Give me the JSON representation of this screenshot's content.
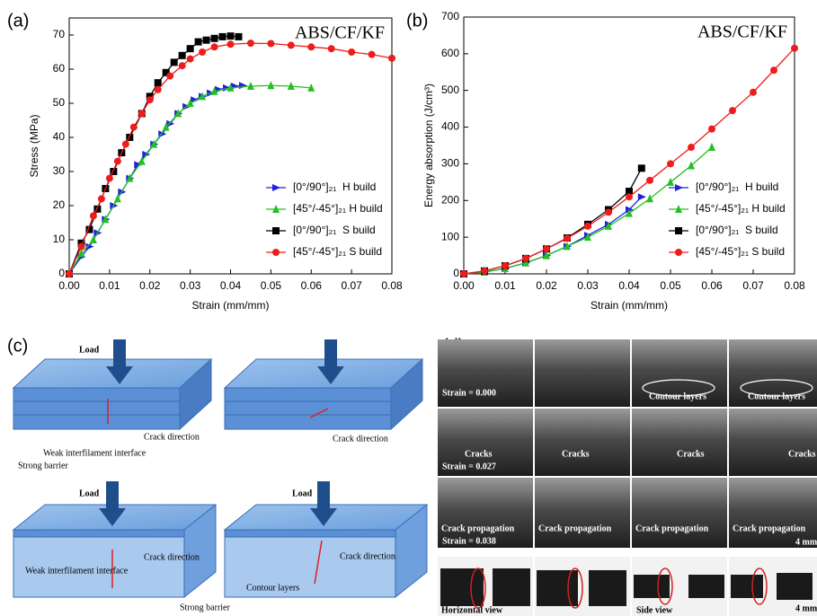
{
  "panel_labels": [
    "(a)",
    "(b)",
    "(c)",
    "(d)"
  ],
  "chart_data": [
    {
      "type": "line",
      "annotation": "ABS/CF/KF",
      "x_label": "Strain (mm/mm)",
      "y_label": "Stress (MPa)",
      "xlim": [
        0,
        0.08
      ],
      "xticks": [
        {
          "value": 0,
          "label": "0.00"
        },
        0.01,
        0.02,
        0.03,
        0.04,
        0.05,
        0.06,
        0.07,
        0.08
      ],
      "ylim": [
        0,
        75
      ],
      "yticks": [
        0,
        10,
        20,
        30,
        40,
        50,
        60,
        70
      ],
      "legend": "lower right",
      "series": [
        {
          "name": "[0°/90°]₂₁  H build",
          "color": "#2020e0",
          "marker": "triangle-right",
          "x": [
            0,
            0.003,
            0.005,
            0.007,
            0.009,
            0.011,
            0.013,
            0.015,
            0.017,
            0.019,
            0.021,
            0.023,
            0.025,
            0.027,
            0.029,
            0.031,
            0.033,
            0.035,
            0.037,
            0.039,
            0.041,
            0.043
          ],
          "values": [
            0,
            5,
            8,
            12,
            16,
            20,
            24,
            28,
            32,
            35,
            38,
            41,
            44,
            47,
            49,
            51,
            52,
            53,
            54,
            54.5,
            55,
            55.2
          ]
        },
        {
          "name": "[45°/-45°]₂₁ H build",
          "color": "#22c022",
          "marker": "triangle-up",
          "x": [
            0,
            0.003,
            0.006,
            0.009,
            0.012,
            0.015,
            0.018,
            0.021,
            0.024,
            0.027,
            0.03,
            0.033,
            0.036,
            0.04,
            0.045,
            0.05,
            0.055,
            0.06
          ],
          "values": [
            0,
            6,
            10,
            16,
            22,
            28,
            33,
            38,
            43,
            47,
            50,
            52,
            53.5,
            54.5,
            55,
            55.2,
            55,
            54.5
          ]
        },
        {
          "name": "[0°/90°]₂₁  S build",
          "color": "#000000",
          "marker": "square",
          "x": [
            0,
            0.003,
            0.005,
            0.007,
            0.009,
            0.011,
            0.013,
            0.015,
            0.018,
            0.02,
            0.022,
            0.024,
            0.026,
            0.028,
            0.03,
            0.032,
            0.034,
            0.036,
            0.038,
            0.04,
            0.042
          ],
          "values": [
            0,
            9,
            13,
            19,
            25,
            30,
            35.5,
            40,
            47,
            52,
            56,
            59,
            62,
            64,
            66,
            68,
            68.5,
            69,
            69.5,
            69.7,
            69.5
          ]
        },
        {
          "name": "[45°/-45°]₂₁ S build",
          "color": "#ee1c1c",
          "marker": "circle",
          "x": [
            0,
            0.003,
            0.006,
            0.008,
            0.01,
            0.012,
            0.014,
            0.016,
            0.018,
            0.02,
            0.022,
            0.025,
            0.028,
            0.03,
            0.033,
            0.036,
            0.04,
            0.045,
            0.05,
            0.055,
            0.06,
            0.065,
            0.07,
            0.075,
            0.08
          ],
          "values": [
            0,
            8,
            17,
            22,
            28,
            33,
            38,
            43,
            47,
            51,
            54,
            58,
            61,
            63,
            65,
            66.5,
            67.3,
            67.6,
            67.5,
            67,
            66.5,
            66,
            65,
            64.3,
            63.2
          ]
        }
      ]
    },
    {
      "type": "line",
      "annotation": "ABS/CF/KF",
      "x_label": "Strain (mm/mm)",
      "y_label": "Energy absorption (J/cm³)",
      "xlim": [
        0,
        0.08
      ],
      "xticks": [
        {
          "value": 0,
          "label": "0.00"
        },
        0.01,
        0.02,
        0.03,
        0.04,
        0.05,
        0.06,
        0.07,
        0.08
      ],
      "ylim": [
        0,
        700
      ],
      "yticks": [
        0,
        100,
        200,
        300,
        400,
        500,
        600,
        700
      ],
      "legend": "lower right",
      "series": [
        {
          "name": "[0°/90°]₂₁  H build",
          "color": "#2020e0",
          "marker": "triangle-right",
          "x": [
            0,
            0.005,
            0.01,
            0.015,
            0.02,
            0.025,
            0.03,
            0.035,
            0.04,
            0.043
          ],
          "values": [
            0,
            5,
            15,
            30,
            50,
            75,
            105,
            135,
            175,
            210
          ]
        },
        {
          "name": "[45°/-45°]₂₁ H build",
          "color": "#22c022",
          "marker": "triangle-up",
          "x": [
            0,
            0.005,
            0.01,
            0.015,
            0.02,
            0.025,
            0.03,
            0.035,
            0.04,
            0.045,
            0.05,
            0.055,
            0.06
          ],
          "values": [
            0,
            5,
            15,
            30,
            50,
            75,
            100,
            130,
            165,
            205,
            250,
            295,
            345
          ]
        },
        {
          "name": "[0°/90°]₂₁  S build",
          "color": "#000000",
          "marker": "square",
          "x": [
            0,
            0.005,
            0.01,
            0.015,
            0.02,
            0.025,
            0.03,
            0.035,
            0.04,
            0.043
          ],
          "values": [
            0,
            8,
            22,
            42,
            68,
            98,
            135,
            175,
            225,
            288
          ]
        },
        {
          "name": "[45°/-45°]₂₁ S build",
          "color": "#ee1c1c",
          "marker": "circle",
          "x": [
            0,
            0.005,
            0.01,
            0.015,
            0.02,
            0.025,
            0.03,
            0.035,
            0.04,
            0.045,
            0.05,
            0.055,
            0.06,
            0.065,
            0.07,
            0.075,
            0.08
          ],
          "values": [
            0,
            8,
            22,
            42,
            68,
            97,
            130,
            168,
            210,
            255,
            300,
            345,
            395,
            445,
            495,
            555,
            615
          ]
        }
      ]
    }
  ],
  "diagram": {
    "panels": [
      {
        "load": "Load",
        "crack": "Crack direction",
        "weak": "Weak interfilament interface",
        "strong": "Strong barrier"
      },
      {
        "crack": "Crack direction"
      },
      {
        "load": "Load",
        "crack": "Crack direction",
        "weak": "Weak interfilament interface",
        "strong": "Strong barrier"
      },
      {
        "load": "Load",
        "crack": "Crack direction",
        "contour": "Contour layers"
      }
    ]
  },
  "photos": {
    "row0": {
      "strain": "Strain = 0.000",
      "contour": [
        "Contour layers",
        "Contour layers"
      ]
    },
    "row1": {
      "strain": "Strain = 0.027",
      "cracks": [
        "Cracks",
        "Cracks",
        "Cracks",
        "Cracks"
      ]
    },
    "row2": {
      "strain": "Strain = 0.038",
      "propagation": [
        "Crack propagation",
        "Crack propagation",
        "Crack propagation",
        "Crack propagation"
      ],
      "scale": "4 mm"
    },
    "row3": {
      "horizontal": "Horizontal view",
      "side": "Side view",
      "scale": "4 mm"
    }
  }
}
